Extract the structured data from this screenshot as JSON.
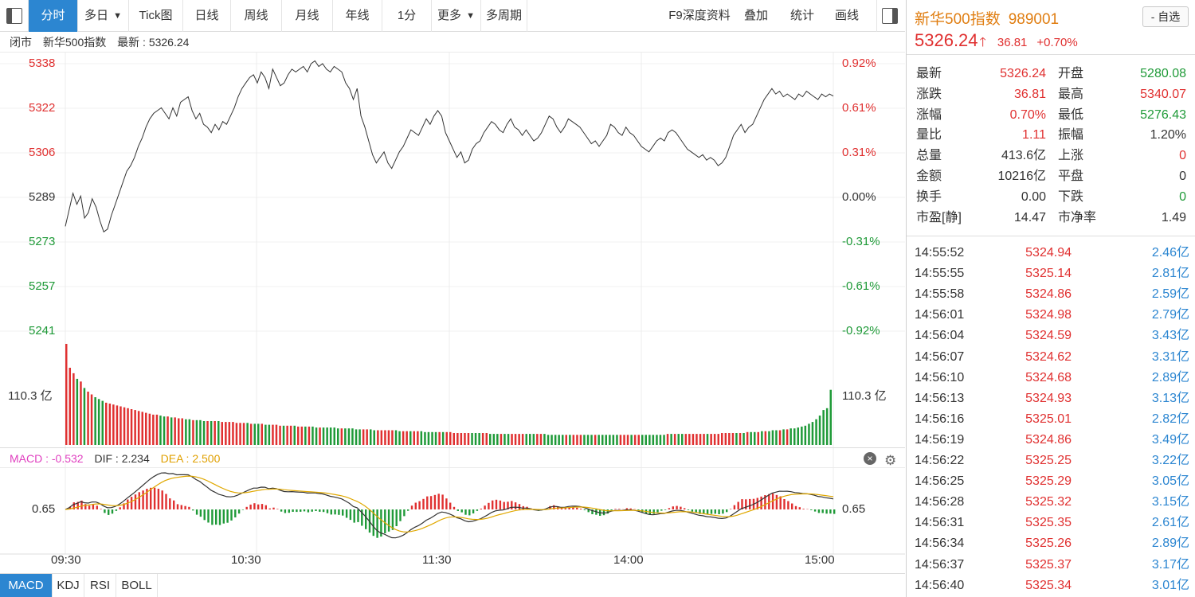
{
  "toolbar": {
    "tabs": [
      {
        "label": "分时",
        "active": true
      },
      {
        "label": "多日",
        "dropdown": true
      },
      {
        "label": "Tick图"
      },
      {
        "label": "日线"
      },
      {
        "label": "周线"
      },
      {
        "label": "月线"
      },
      {
        "label": "年线"
      },
      {
        "label": "1分"
      },
      {
        "label": "更多",
        "dropdown": true
      },
      {
        "label": "多周期"
      }
    ],
    "right_items": [
      "F9深度资料",
      "叠加",
      "统计",
      "画线"
    ]
  },
  "infobar": {
    "status": "闭市",
    "name": "新华500指数",
    "latest_label": "最新",
    "latest_value": "5326.24"
  },
  "chart_data": {
    "type": "line",
    "title": "",
    "x_ticks": [
      "09:30",
      "10:30",
      "11:30",
      "14:00",
      "15:00"
    ],
    "left_y_ticks": [
      "5338",
      "5322",
      "5306",
      "5289",
      "5273",
      "5257",
      "5241"
    ],
    "right_y_ticks": [
      "0.92%",
      "0.61%",
      "0.31%",
      "0.00%",
      "-0.31%",
      "-0.61%",
      "-0.92%"
    ],
    "ylim": [
      5241,
      5338
    ],
    "prev_close": 5289,
    "price": [
      5279,
      5285,
      5291,
      5287,
      5290,
      5282,
      5284,
      5289,
      5286,
      5281,
      5277,
      5278,
      5283,
      5287,
      5291,
      5295,
      5299,
      5301,
      5304,
      5308,
      5311,
      5315,
      5318,
      5320,
      5321,
      5322,
      5320,
      5318,
      5322,
      5319,
      5324,
      5325,
      5326,
      5321,
      5318,
      5320,
      5316,
      5315,
      5313,
      5316,
      5314,
      5317,
      5316,
      5319,
      5322,
      5326,
      5329,
      5331,
      5333,
      5334,
      5331,
      5335,
      5333,
      5329,
      5336,
      5333,
      5330,
      5331,
      5334,
      5336,
      5335,
      5336,
      5337,
      5335,
      5338,
      5339,
      5337,
      5338,
      5336,
      5335,
      5337,
      5336,
      5335,
      5331,
      5329,
      5325,
      5329,
      5319,
      5315,
      5310,
      5305,
      5302,
      5304,
      5306,
      5302,
      5300,
      5303,
      5306,
      5308,
      5311,
      5314,
      5313,
      5312,
      5315,
      5318,
      5316,
      5319,
      5321,
      5319,
      5313,
      5310,
      5307,
      5304,
      5306,
      5302,
      5303,
      5307,
      5309,
      5310,
      5313,
      5315,
      5317,
      5316,
      5314,
      5313,
      5316,
      5318,
      5315,
      5314,
      5312,
      5314,
      5312,
      5310,
      5311,
      5313,
      5316,
      5319,
      5318,
      5315,
      5313,
      5315,
      5318,
      5317,
      5316,
      5315,
      5313,
      5311,
      5309,
      5310,
      5308,
      5310,
      5312,
      5316,
      5315,
      5313,
      5312,
      5315,
      5313,
      5312,
      5310,
      5308,
      5307,
      5306,
      5308,
      5310,
      5311,
      5310,
      5313,
      5314,
      5313,
      5311,
      5309,
      5307,
      5306,
      5305,
      5304,
      5305,
      5303,
      5304,
      5303,
      5301,
      5302,
      5304,
      5308,
      5312,
      5314,
      5316,
      5313,
      5315,
      5316,
      5319,
      5322,
      5325,
      5327,
      5329,
      5327,
      5328,
      5326,
      5327,
      5326,
      5325,
      5327,
      5326,
      5328,
      5327,
      5326,
      5325,
      5327,
      5326,
      5327,
      5326.24
    ],
    "volume": [
      110,
      84,
      78,
      72,
      69,
      62,
      58,
      55,
      52,
      50,
      48,
      46,
      45,
      44,
      43,
      42,
      41,
      40,
      39,
      38,
      37,
      36,
      35,
      34,
      33,
      33,
      32,
      31,
      31,
      30,
      30,
      29,
      29,
      28,
      28,
      27,
      27,
      27,
      26,
      26,
      26,
      26,
      26,
      25,
      25,
      25,
      25,
      24,
      24,
      24,
      24,
      23,
      23,
      23,
      23,
      22,
      22,
      22,
      22,
      21,
      21,
      21,
      21,
      21,
      20,
      20,
      20,
      20,
      20,
      19,
      19,
      19,
      19,
      19,
      19,
      18,
      18,
      18,
      18,
      18,
      17,
      17,
      17,
      17,
      17,
      16,
      16,
      16,
      16,
      16,
      16,
      16,
      15,
      15,
      15,
      15,
      15,
      15,
      15,
      14,
      14,
      14,
      14,
      14,
      14,
      14,
      14,
      13,
      13,
      13,
      13,
      13,
      13,
      13,
      13,
      13,
      13,
      12,
      12,
      12,
      12,
      12,
      12,
      12,
      12,
      12,
      12,
      12,
      12,
      12,
      12,
      12,
      12,
      11,
      11,
      11,
      11,
      11,
      11,
      11,
      11,
      11,
      11,
      11,
      11,
      11,
      11,
      11,
      11,
      11,
      11,
      11,
      11,
      11,
      11,
      11,
      11,
      11,
      11,
      11,
      11,
      11,
      11,
      11,
      11,
      11,
      12,
      12,
      12,
      12,
      12,
      12,
      12,
      12,
      12,
      12,
      12,
      12,
      12,
      12,
      12,
      13,
      13,
      13,
      13,
      13,
      13,
      13,
      14,
      14,
      14,
      14,
      15,
      15,
      15,
      16,
      16,
      16,
      17,
      17,
      18,
      18,
      19,
      20,
      21,
      23,
      25,
      28,
      32,
      38,
      40,
      60
    ],
    "volume_label": "110.3 亿",
    "macd": {
      "label_macd": "MACD : -0.532",
      "label_dif": "DIF : 2.234",
      "label_dea": "DEA : 2.500",
      "zero_label": "0.65"
    }
  },
  "macd_head": {
    "close_icon": "×",
    "gear_icon": "⚙"
  },
  "indicator_tabs": [
    {
      "label": "MACD",
      "active": true
    },
    {
      "label": "KDJ"
    },
    {
      "label": "RSI"
    },
    {
      "label": "BOLL"
    }
  ],
  "quote": {
    "name": "新华500指数",
    "code": "989001",
    "add_fav": "- 自选",
    "price": "5326.24",
    "change": "36.81",
    "pct": "+0.70%",
    "colors": {
      "up": "#e03030",
      "down": "#1f9a38",
      "flat": "#333333",
      "accent": "#2c86d1",
      "title": "#e07e12"
    }
  },
  "stats": [
    {
      "k1": "最新",
      "v1": "5326.24",
      "c1": "up",
      "k2": "开盘",
      "v2": "5280.08",
      "c2": "down"
    },
    {
      "k1": "涨跌",
      "v1": "36.81",
      "c1": "up",
      "k2": "最高",
      "v2": "5340.07",
      "c2": "up"
    },
    {
      "k1": "涨幅",
      "v1": "0.70%",
      "c1": "up",
      "k2": "最低",
      "v2": "5276.43",
      "c2": "down"
    },
    {
      "k1": "量比",
      "v1": "1.11",
      "c1": "up",
      "k2": "振幅",
      "v2": "1.20%",
      "c2": "flat"
    },
    {
      "k1": "总量",
      "v1": "413.6亿",
      "c1": "flat",
      "k2": "上涨",
      "v2": "0",
      "c2": "up"
    },
    {
      "k1": "金额",
      "v1": "10216亿",
      "c1": "flat",
      "k2": "平盘",
      "v2": "0",
      "c2": "flat"
    },
    {
      "k1": "换手",
      "v1": "0.00",
      "c1": "flat",
      "k2": "下跌",
      "v2": "0",
      "c2": "down"
    },
    {
      "k1": "市盈[静]",
      "v1": "14.47",
      "c1": "flat",
      "k2": "市净率",
      "v2": "1.49",
      "c2": "flat"
    }
  ],
  "ticks": [
    {
      "time": "14:55:52",
      "price": "5324.94",
      "vol": "2.46亿"
    },
    {
      "time": "14:55:55",
      "price": "5325.14",
      "vol": "2.81亿"
    },
    {
      "time": "14:55:58",
      "price": "5324.86",
      "vol": "2.59亿"
    },
    {
      "time": "14:56:01",
      "price": "5324.98",
      "vol": "2.79亿"
    },
    {
      "time": "14:56:04",
      "price": "5324.59",
      "vol": "3.43亿"
    },
    {
      "time": "14:56:07",
      "price": "5324.62",
      "vol": "3.31亿"
    },
    {
      "time": "14:56:10",
      "price": "5324.68",
      "vol": "2.89亿"
    },
    {
      "time": "14:56:13",
      "price": "5324.93",
      "vol": "3.13亿"
    },
    {
      "time": "14:56:16",
      "price": "5325.01",
      "vol": "2.82亿"
    },
    {
      "time": "14:56:19",
      "price": "5324.86",
      "vol": "3.49亿"
    },
    {
      "time": "14:56:22",
      "price": "5325.25",
      "vol": "3.22亿"
    },
    {
      "time": "14:56:25",
      "price": "5325.29",
      "vol": "3.05亿"
    },
    {
      "time": "14:56:28",
      "price": "5325.32",
      "vol": "3.15亿"
    },
    {
      "time": "14:56:31",
      "price": "5325.35",
      "vol": "2.61亿"
    },
    {
      "time": "14:56:34",
      "price": "5325.26",
      "vol": "2.89亿"
    },
    {
      "time": "14:56:37",
      "price": "5325.37",
      "vol": "3.17亿"
    },
    {
      "time": "14:56:40",
      "price": "5325.34",
      "vol": "3.01亿"
    }
  ]
}
